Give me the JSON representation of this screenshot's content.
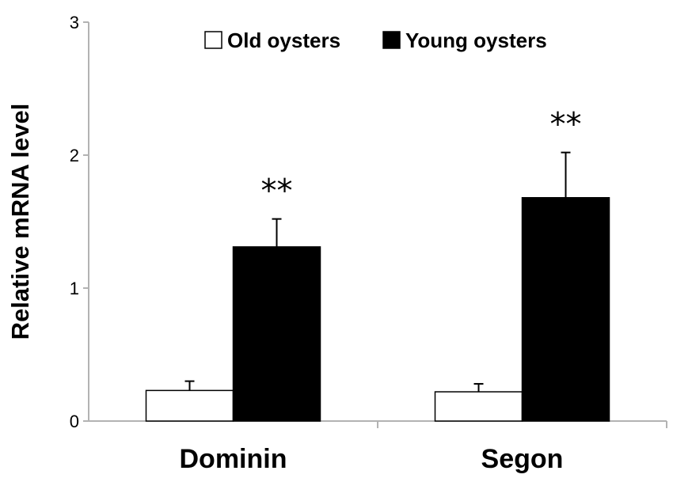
{
  "chart_data": {
    "type": "bar",
    "title": "",
    "xlabel": "",
    "ylabel": "Relative mRNA level",
    "ylim": [
      0,
      3
    ],
    "yticks": [
      "0",
      "1",
      "2",
      "3"
    ],
    "categories": [
      "Dominin",
      "Segon"
    ],
    "series": [
      {
        "name": "Old oysters",
        "values": [
          0.23,
          0.22
        ],
        "errors": [
          0.07,
          0.06
        ],
        "color": "#ffffff",
        "edge": "#000000"
      },
      {
        "name": "Young oysters",
        "values": [
          1.31,
          1.68
        ],
        "errors": [
          0.21,
          0.34
        ],
        "color": "#000000",
        "edge": "#000000"
      }
    ],
    "annotations": [
      "**",
      "**"
    ],
    "legend_position": "top",
    "grid": false
  }
}
